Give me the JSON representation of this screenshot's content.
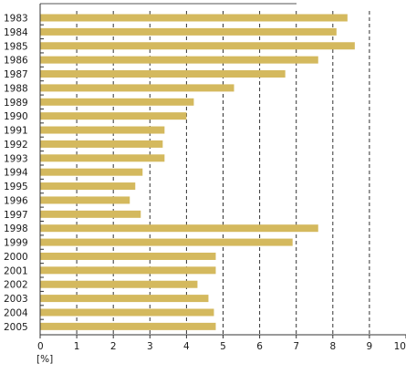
{
  "chart_data": {
    "type": "bar",
    "orientation": "horizontal",
    "categories": [
      "1983",
      "1984",
      "1985",
      "1986",
      "1987",
      "1988",
      "1989",
      "1990",
      "1991",
      "1992",
      "1993",
      "1994",
      "1995",
      "1996",
      "1997",
      "1998",
      "1999",
      "2000",
      "2001",
      "2002",
      "2003",
      "2004",
      "2005"
    ],
    "values": [
      8.4,
      8.1,
      8.6,
      7.6,
      6.7,
      5.3,
      4.2,
      4.0,
      3.4,
      3.35,
      3.4,
      2.8,
      2.6,
      2.45,
      2.75,
      7.6,
      6.9,
      4.8,
      4.8,
      4.3,
      4.6,
      4.75,
      4.8
    ],
    "xlim": [
      0,
      10
    ],
    "xticks": [
      "0",
      "1",
      "2",
      "3",
      "4",
      "5",
      "6",
      "7",
      "8",
      "9",
      "10"
    ],
    "unit_label": "[%]",
    "bar_color": "#d4b95e",
    "grid": "vertical dashed lines at each integer tick",
    "title": "",
    "xlabel": "",
    "ylabel": ""
  }
}
